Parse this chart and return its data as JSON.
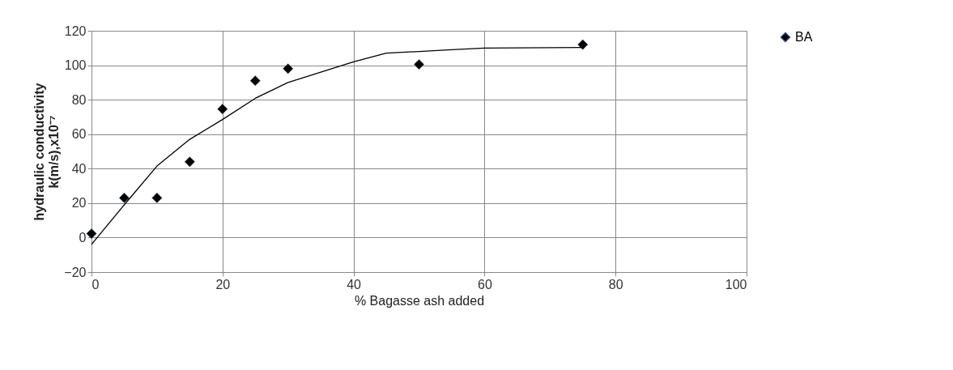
{
  "chart_data": {
    "type": "scatter",
    "xlabel": "%  Bagasse ash added",
    "ylabel": "hydraulic conductivity\nk(m/s),x10⁻⁷",
    "x": [
      0,
      5,
      10,
      15,
      20,
      25,
      30,
      50,
      75
    ],
    "series": [
      {
        "name": "BA",
        "color": "#000000",
        "marker": "diamond",
        "values": [
          2.3,
          23,
          23,
          44,
          74.6,
          91,
          98,
          100.5,
          112
        ]
      },
      {
        "type": "line",
        "color": "#000000",
        "marker": "none",
        "x": [
          0,
          5,
          10,
          15,
          20,
          25,
          30,
          40,
          45,
          50,
          55,
          60,
          75
        ],
        "values": [
          -4,
          19,
          41.5,
          57,
          68.5,
          80.8,
          90,
          102,
          107,
          108,
          109,
          110,
          110.3
        ]
      }
    ],
    "xlim": [
      0,
      100
    ],
    "xticks": [
      0,
      20,
      40,
      60,
      80,
      100
    ],
    "ylim": [
      -20,
      120
    ],
    "yticks": [
      -20,
      0,
      20,
      40,
      60,
      80,
      100,
      120
    ],
    "grid": true,
    "legend": "right",
    "line_style": "solid"
  }
}
